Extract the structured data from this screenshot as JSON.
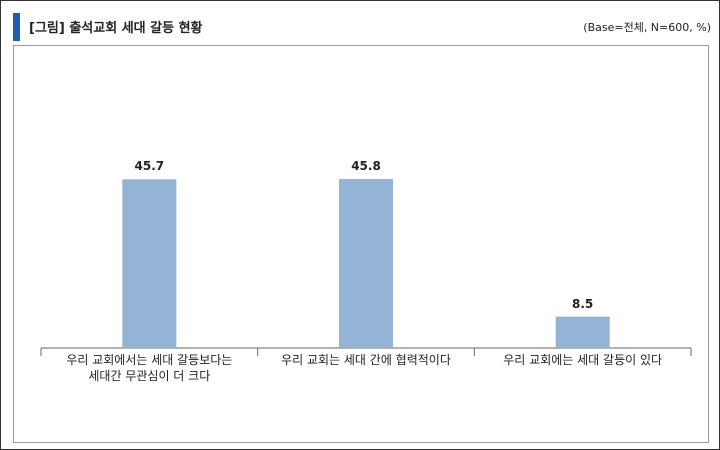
{
  "chart_data": {
    "type": "bar",
    "title": "[그림] 출석교회 세대 갈등 현황",
    "subtitle": "(Base=전체, N=600, %)",
    "categories": [
      "우리 교회에서는 세대 갈등보다는\n세대간 무관심이 더 크다",
      "우리 교회는 세대 간에 협력적이다",
      "우리 교회에는 세대 갈등이 있다"
    ],
    "values": [
      45.7,
      45.8,
      8.5
    ],
    "color": "#95b3d7"
  }
}
